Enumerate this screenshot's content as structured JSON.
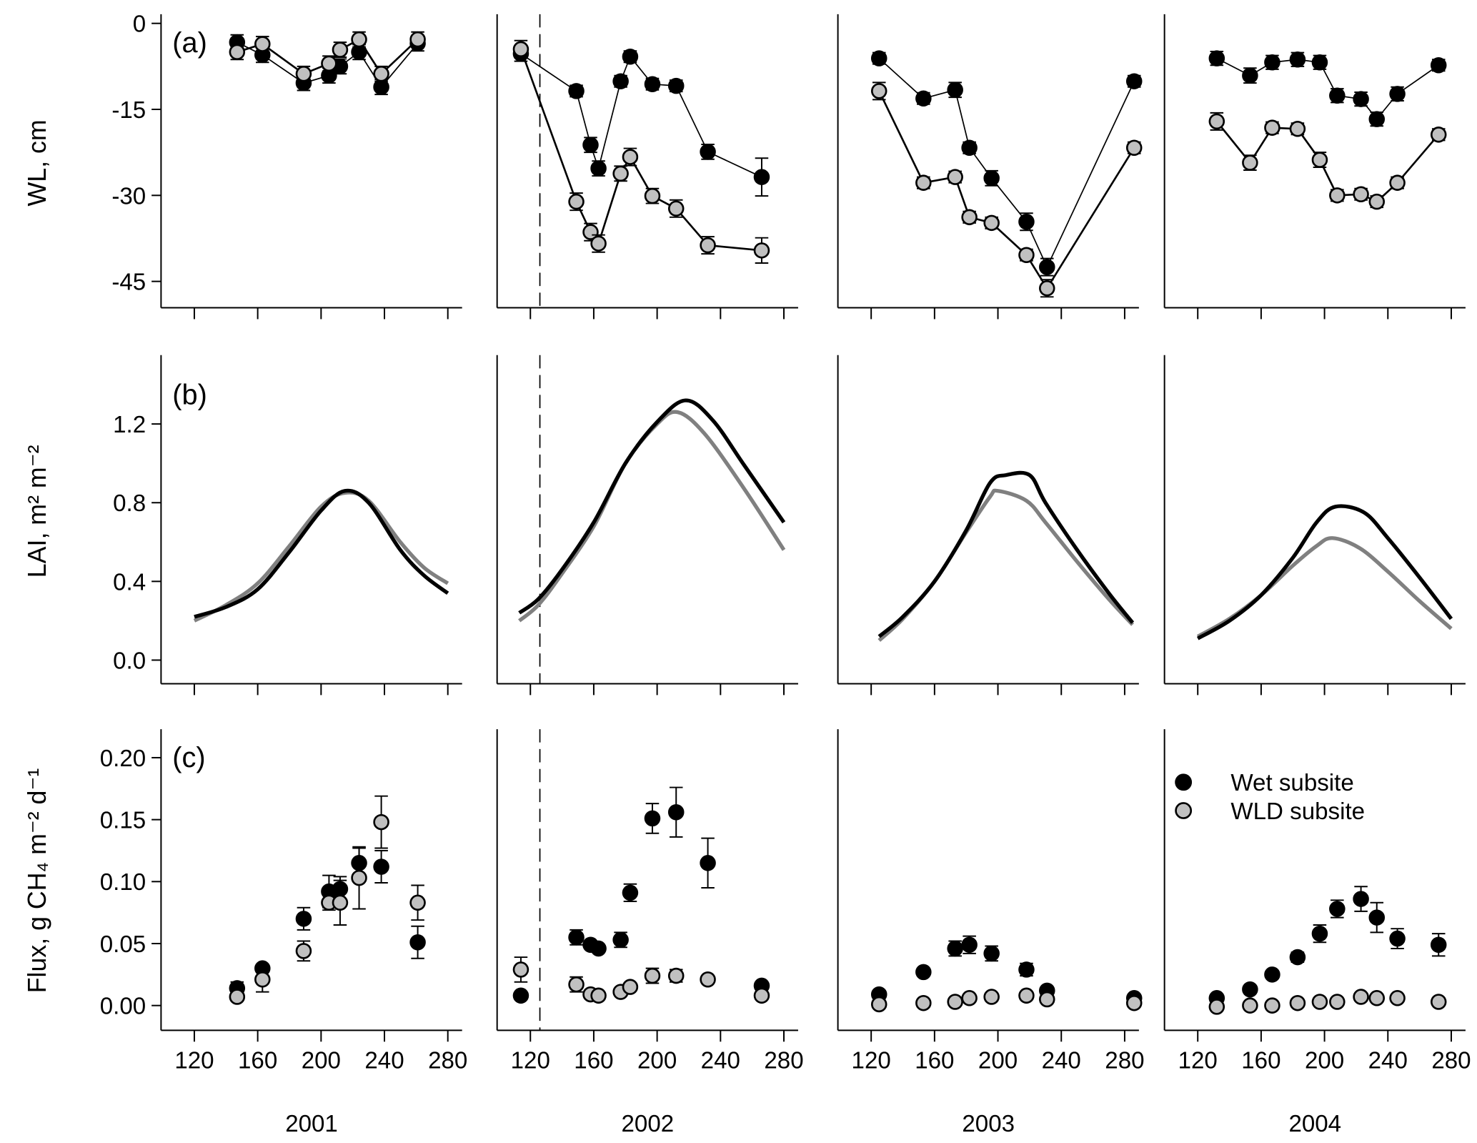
{
  "colors": {
    "wet": "#000000",
    "wld": "#c0c0c0",
    "wld_line": "#808080",
    "axis": "#000000"
  },
  "years": [
    "2001",
    "2002",
    "2003",
    "2004"
  ],
  "xticks": [
    120,
    160,
    200,
    240,
    280
  ],
  "xlim": [
    99,
    289
  ],
  "dashed_line_day": {
    "year": "2002",
    "day": 126
  },
  "legend": {
    "placement": "top-right of panel (c) 2004",
    "wet_label": "Wet subsite",
    "wld_label": "WLD subsite"
  },
  "chart_data": [
    {
      "panel": "(a)",
      "type": "scatter",
      "ylabel": "WL, cm",
      "ylim": [
        -49.6,
        1.6
      ],
      "yticks": [
        0,
        -15,
        -30,
        -45
      ],
      "lines": true,
      "data": [
        {
          "year": "2001",
          "x": [
            147,
            163,
            189,
            205,
            212,
            224,
            238,
            261
          ],
          "wet": {
            "y": [
              -3.3,
              -5.5,
              -10.4,
              -9.1,
              -7.5,
              -5.0,
              -11.1,
              -3.5
            ],
            "err": [
              1.3,
              1.3,
              1.3,
              1.3,
              1.3,
              1.3,
              1.3,
              1.3
            ]
          },
          "wld": {
            "y": [
              -5.0,
              -3.6,
              -8.8,
              -7.0,
              -4.6,
              -2.8,
              -8.8,
              -2.8
            ],
            "err": [
              1.3,
              1.3,
              1.3,
              1.3,
              1.3,
              1.3,
              1.3,
              1.3
            ]
          }
        },
        {
          "year": "2002",
          "x": [
            114,
            149,
            158,
            163,
            177,
            183,
            197,
            212,
            232,
            266
          ],
          "wet": {
            "y": [
              -5.3,
              -11.8,
              -21.2,
              -25.3,
              -10.1,
              -5.8,
              -10.6,
              -10.9,
              -22.4,
              -26.8
            ],
            "err": [
              1.3,
              1.0,
              1.3,
              1.3,
              1.0,
              1.0,
              1.0,
              1.0,
              1.3,
              3.3
            ]
          },
          "wld": {
            "y": [
              -4.5,
              -31.1,
              -36.4,
              -38.4,
              -26.2,
              -23.3,
              -30.1,
              -32.3,
              -38.7,
              -39.6
            ],
            "err": [
              1.5,
              1.5,
              1.5,
              1.5,
              1.3,
              1.5,
              1.3,
              1.5,
              1.5,
              2.2
            ]
          }
        },
        {
          "year": "2003",
          "x": [
            125,
            153,
            173,
            182,
            196,
            218,
            231,
            286
          ],
          "wet": {
            "y": [
              -6.1,
              -13.1,
              -11.6,
              -21.7,
              -27.0,
              -34.6,
              -42.5,
              -10.1
            ],
            "err": [
              1.0,
              1.0,
              1.3,
              1.0,
              1.3,
              1.5,
              1.5,
              1.0
            ]
          },
          "wld": {
            "y": [
              -11.8,
              -27.8,
              -26.8,
              -33.8,
              -34.8,
              -40.4,
              -46.2,
              -21.7
            ],
            "err": [
              1.5,
              1.0,
              1.0,
              1.0,
              1.0,
              1.0,
              1.5,
              1.0
            ]
          }
        },
        {
          "year": "2004",
          "x": [
            132,
            153,
            167,
            183,
            197,
            208,
            223,
            233,
            246,
            272
          ],
          "wet": {
            "y": [
              -6.1,
              -9.1,
              -6.8,
              -6.3,
              -6.8,
              -12.6,
              -13.2,
              -16.7,
              -12.3,
              -7.3
            ],
            "err": [
              1.2,
              1.3,
              1.2,
              1.2,
              1.2,
              1.2,
              1.2,
              1.2,
              1.2,
              1.0
            ]
          },
          "wld": {
            "y": [
              -17.1,
              -24.3,
              -18.2,
              -18.4,
              -23.8,
              -30.0,
              -29.8,
              -31.1,
              -27.8,
              -19.4
            ],
            "err": [
              1.5,
              1.3,
              1.0,
              1.0,
              1.3,
              1.0,
              1.0,
              1.0,
              1.0,
              1.0
            ]
          }
        }
      ]
    },
    {
      "panel": "(b)",
      "type": "line",
      "ylabel": "LAI, m² m⁻²",
      "ylim": [
        -0.12,
        1.55
      ],
      "yticks": [
        "0.0",
        "0.4",
        "0.8",
        "1.2"
      ],
      "data": [
        {
          "year": "2001",
          "wet": {
            "x": [
              120,
              140,
              160,
              180,
              200,
              215,
              230,
              250,
              265,
              280
            ],
            "y": [
              0.22,
              0.27,
              0.36,
              0.55,
              0.76,
              0.86,
              0.8,
              0.56,
              0.43,
              0.34
            ]
          },
          "wld": {
            "x": [
              120,
              140,
              160,
              180,
              200,
              215,
              230,
              250,
              265,
              280
            ],
            "y": [
              0.2,
              0.28,
              0.39,
              0.58,
              0.78,
              0.85,
              0.81,
              0.6,
              0.47,
              0.39
            ]
          }
        },
        {
          "year": "2002",
          "wet": {
            "x": [
              113,
              125,
              140,
              160,
              180,
              200,
              218,
              235,
              255,
              280
            ],
            "y": [
              0.24,
              0.31,
              0.46,
              0.7,
              1.0,
              1.21,
              1.32,
              1.22,
              0.99,
              0.7
            ]
          },
          "wld": {
            "x": [
              113,
              125,
              140,
              160,
              180,
              200,
              213,
              230,
              255,
              280
            ],
            "y": [
              0.2,
              0.28,
              0.44,
              0.68,
              1.0,
              1.2,
              1.26,
              1.15,
              0.87,
              0.56
            ]
          }
        },
        {
          "year": "2003",
          "wet": {
            "x": [
              125,
              140,
              160,
              180,
              195,
              205,
              220,
              230,
              250,
              270,
              285
            ],
            "y": [
              0.12,
              0.22,
              0.4,
              0.66,
              0.9,
              0.94,
              0.94,
              0.8,
              0.56,
              0.34,
              0.19
            ]
          },
          "wld": {
            "x": [
              125,
              140,
              160,
              180,
              195,
              200,
              218,
              230,
              250,
              270,
              285
            ],
            "y": [
              0.1,
              0.21,
              0.4,
              0.65,
              0.83,
              0.86,
              0.81,
              0.7,
              0.5,
              0.31,
              0.18
            ]
          }
        },
        {
          "year": "2004",
          "wet": {
            "x": [
              120,
              140,
              160,
              180,
              195,
              207,
              225,
              240,
              260,
              280
            ],
            "y": [
              0.11,
              0.2,
              0.33,
              0.52,
              0.7,
              0.78,
              0.75,
              0.62,
              0.42,
              0.21
            ]
          },
          "wld": {
            "x": [
              120,
              140,
              160,
              180,
              195,
              205,
              222,
              240,
              260,
              280
            ],
            "y": [
              0.12,
              0.21,
              0.33,
              0.48,
              0.58,
              0.62,
              0.57,
              0.45,
              0.3,
              0.16
            ]
          }
        }
      ]
    },
    {
      "panel": "(c)",
      "type": "scatter",
      "ylabel": "Flux, g CH₄ m⁻² d⁻¹",
      "ylim": [
        -0.02,
        0.223
      ],
      "yticks": [
        "0.00",
        "0.05",
        "0.10",
        "0.15",
        "0.20"
      ],
      "lines": false,
      "data": [
        {
          "year": "2001",
          "x": [
            147,
            163,
            189,
            205,
            212,
            224,
            238,
            261
          ],
          "wet": {
            "y": [
              0.014,
              0.03,
              0.07,
              0.092,
              0.094,
              0.115,
              0.112,
              0.051
            ],
            "err": [
              0.005,
              0.003,
              0.009,
              0.013,
              0.01,
              0.012,
              0.013,
              0.013
            ]
          },
          "wld": {
            "y": [
              0.007,
              0.021,
              0.044,
              0.083,
              0.083,
              0.103,
              0.148,
              0.083
            ],
            "err": [
              0.002,
              0.01,
              0.008,
              0.006,
              0.018,
              0.025,
              0.021,
              0.014
            ]
          }
        },
        {
          "year": "2002",
          "x": [
            114,
            149,
            158,
            163,
            177,
            183,
            197,
            212,
            232,
            266
          ],
          "wet": {
            "y": [
              0.008,
              0.055,
              0.049,
              0.046,
              0.053,
              0.091,
              0.151,
              0.156,
              0.115,
              0.016
            ],
            "err": [
              0.001,
              0.006,
              0.003,
              0.003,
              0.006,
              0.007,
              0.012,
              0.02,
              0.02,
              0.002
            ]
          },
          "wld": {
            "y": [
              0.029,
              0.017,
              0.009,
              0.008,
              0.011,
              0.015,
              0.024,
              0.024,
              0.021,
              0.008
            ],
            "err": [
              0.01,
              0.006,
              0.002,
              0.002,
              0.002,
              0.002,
              0.006,
              0.005,
              0.002,
              0.002
            ]
          }
        },
        {
          "year": "2003",
          "x": [
            125,
            153,
            173,
            182,
            196,
            218,
            231,
            286
          ],
          "wet": {
            "y": [
              0.009,
              0.027,
              0.046,
              0.049,
              0.042,
              0.029,
              0.012,
              0.006
            ],
            "err": [
              0.001,
              0.002,
              0.006,
              0.007,
              0.006,
              0.005,
              0.002,
              0.001
            ]
          },
          "wld": {
            "y": [
              0.001,
              0.002,
              0.003,
              0.006,
              0.007,
              0.008,
              0.005,
              0.002
            ],
            "err": [
              0.001,
              0.001,
              0.001,
              0.001,
              0.001,
              0.001,
              0.001,
              0.001
            ]
          }
        },
        {
          "year": "2004",
          "x": [
            132,
            153,
            167,
            183,
            197,
            208,
            223,
            233,
            246,
            272
          ],
          "wet": {
            "y": [
              0.006,
              0.013,
              0.025,
              0.039,
              0.058,
              0.078,
              0.086,
              0.071,
              0.054,
              0.049
            ],
            "err": [
              0.001,
              0.002,
              0.002,
              0.004,
              0.007,
              0.007,
              0.01,
              0.012,
              0.008,
              0.009
            ]
          },
          "wld": {
            "y": [
              -0.001,
              0.0,
              0.0,
              0.002,
              0.003,
              0.003,
              0.007,
              0.006,
              0.006,
              0.003
            ],
            "err": [
              0.001,
              0.001,
              0.001,
              0.001,
              0.001,
              0.001,
              0.001,
              0.001,
              0.001,
              0.001
            ]
          }
        }
      ]
    }
  ]
}
